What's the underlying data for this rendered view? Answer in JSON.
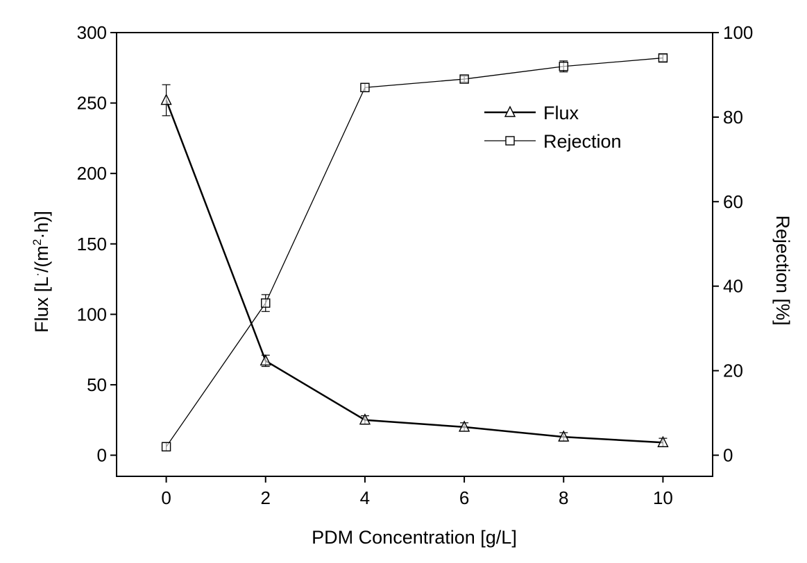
{
  "chart_data": {
    "type": "line",
    "x": [
      0,
      2,
      4,
      6,
      8,
      10
    ],
    "xlabel": "PDM Concentration [g/L]",
    "ylabel_left": "Flux [L/(m2·h)]",
    "ylabel_left_parts": {
      "pre": "Flux [L",
      "sup1": "·",
      "mid": "/(m",
      "sup2": "2",
      "post": "·h)]"
    },
    "ylabel_right": "Rejection [%]",
    "xlim": [
      -1,
      11
    ],
    "ylim_left": [
      -15,
      300
    ],
    "ylim_right": [
      -5,
      100
    ],
    "xticks": [
      0,
      2,
      4,
      6,
      8,
      10
    ],
    "yticks_left": [
      0,
      50,
      100,
      150,
      200,
      250,
      300
    ],
    "yticks_right": [
      0,
      20,
      40,
      60,
      80,
      100
    ],
    "grid": false,
    "legend_position": "top-right",
    "series": [
      {
        "name": "Flux",
        "axis": "left",
        "marker": "triangle",
        "values": [
          252,
          67,
          25,
          20,
          13,
          9
        ],
        "errors": [
          11,
          4,
          3,
          3,
          3,
          3
        ],
        "color": "#000000"
      },
      {
        "name": "Rejection",
        "axis": "right",
        "marker": "square",
        "values": [
          2,
          36,
          87,
          89,
          92,
          94
        ],
        "errors": [
          1,
          2,
          1,
          0.7,
          1.3,
          0.8
        ],
        "color": "#000000"
      }
    ]
  }
}
